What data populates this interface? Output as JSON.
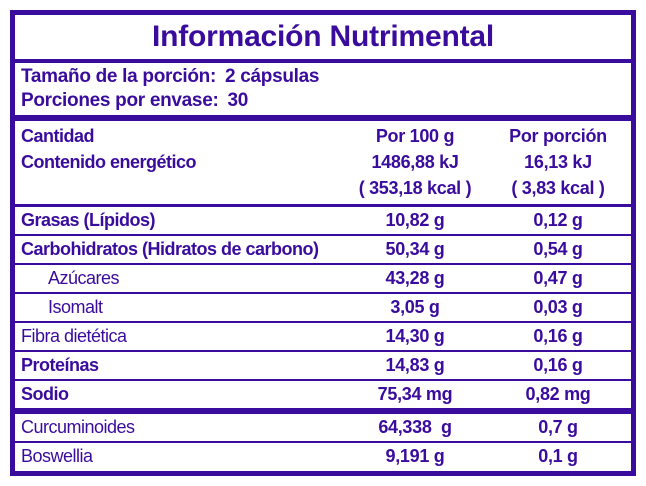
{
  "colors": {
    "primary": "#3A0C9D",
    "background": "#FFFFFF"
  },
  "title": "Información Nutrimental",
  "serving": {
    "size_label": "Tamaño de la porción:",
    "size_value": "2 cápsulas",
    "per_container_label": "Porciones por envase:",
    "per_container_value": "30"
  },
  "header": {
    "amount_label": "Cantidad",
    "energy_label": "Contenido energético",
    "per_100g_label": "Por 100 g",
    "per_serving_label": "Por porción",
    "energy_per_100g_kj": "1486,88 kJ",
    "energy_per_100g_kcal": "( 353,18 kcal )",
    "energy_per_serving_kj": "16,13 kJ",
    "energy_per_serving_kcal": "( 3,83 kcal )"
  },
  "nutrients": [
    {
      "label": "Grasas (Lípidos)",
      "per_100g": "10,82 g",
      "per_serving": "0,12 g"
    },
    {
      "label": "Carbohidratos (Hidratos de carbono)",
      "per_100g": "50,34 g",
      "per_serving": "0,54 g"
    },
    {
      "label": "Azúcares",
      "per_100g": "43,28 g",
      "per_serving": "0,47 g"
    },
    {
      "label": "Isomalt",
      "per_100g": "3,05 g",
      "per_serving": "0,03 g"
    },
    {
      "label": "Fibra dietética",
      "per_100g": "14,30 g",
      "per_serving": "0,16 g"
    },
    {
      "label": "Proteínas",
      "per_100g": "14,83 g",
      "per_serving": "0,16 g"
    },
    {
      "label": "Sodio",
      "per_100g": "75,34 mg",
      "per_serving": "0,82 mg"
    }
  ],
  "actives": [
    {
      "label": "Curcuminoides",
      "per_100g": "64,338  g",
      "per_serving": "0,7 g"
    },
    {
      "label": "Boswellia",
      "per_100g": "9,191 g",
      "per_serving": "0,1 g"
    }
  ]
}
